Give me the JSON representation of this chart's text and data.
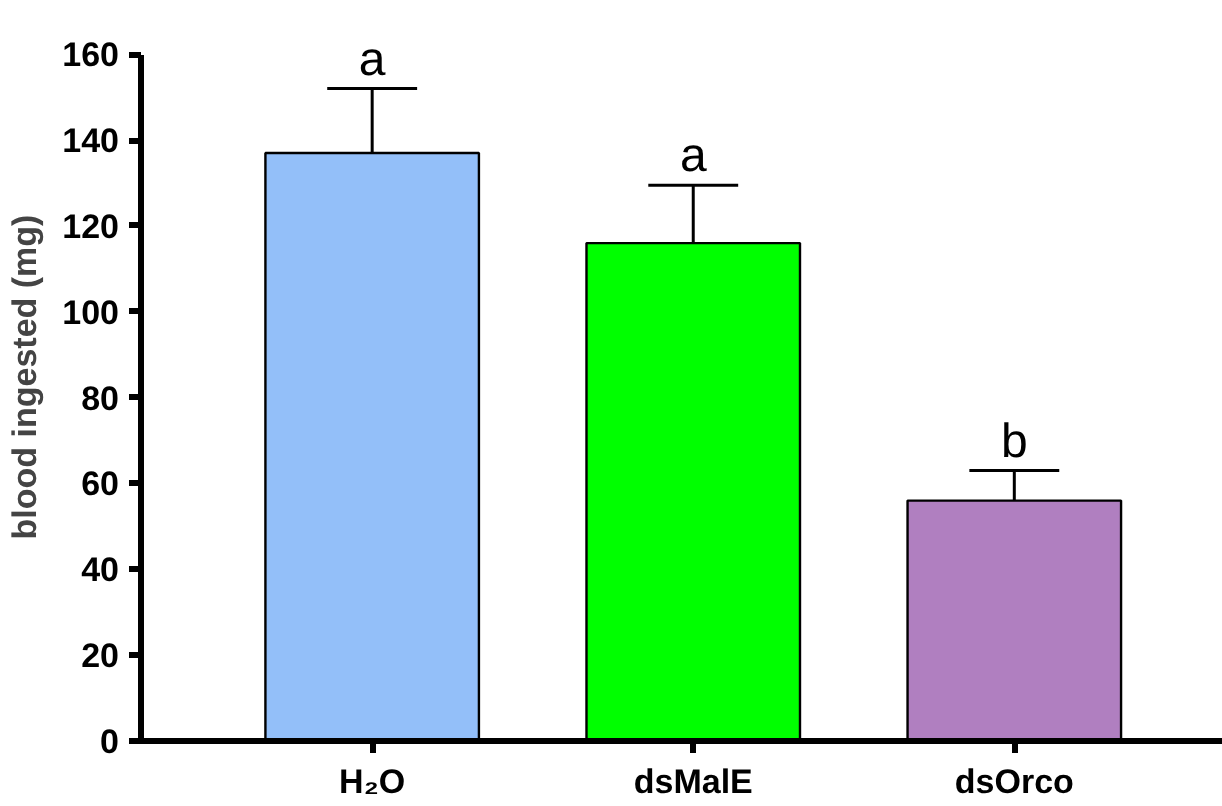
{
  "chart_data": {
    "type": "bar",
    "ylabel": "blood ingested (mg)",
    "categories": [
      "H₂O",
      "dsMalE",
      "dsOrco"
    ],
    "values": [
      137,
      116,
      56
    ],
    "colors": [
      "#93bff9",
      "#00ff00",
      "#b07fc0"
    ],
    "errors": [
      [
        137,
        152
      ],
      [
        116,
        129.5
      ],
      [
        56,
        63
      ]
    ],
    "ylim": [
      0,
      160
    ],
    "yticks": [
      0,
      20,
      40,
      60,
      80,
      100,
      120,
      140,
      160
    ],
    "grid": false,
    "annotations": [
      {
        "text": "a",
        "x": "H₂O",
        "y": 152
      },
      {
        "text": "a",
        "x": "dsMalE",
        "y": 129.5
      },
      {
        "text": "b",
        "x": "dsOrco",
        "y": 63
      }
    ]
  }
}
